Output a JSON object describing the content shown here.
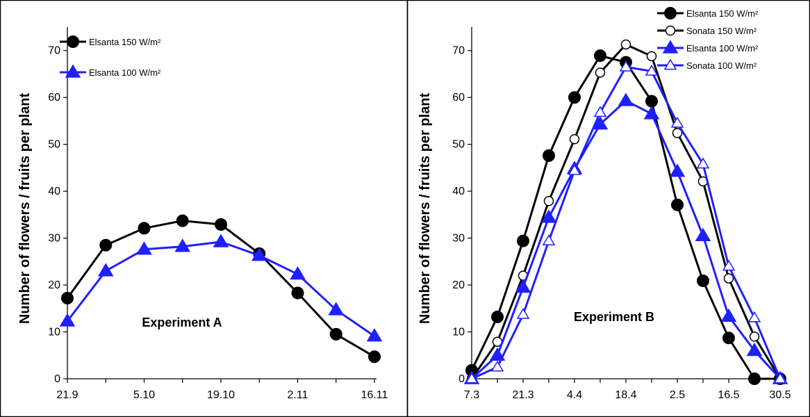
{
  "chart_data": [
    {
      "type": "line",
      "title": "",
      "annotation": "Experiment A",
      "ylabel": "Number  of flowers  / fruits  per plant",
      "xlabel": "",
      "ylim": [
        0,
        75
      ],
      "yticks": [
        0,
        10,
        20,
        30,
        40,
        50,
        60,
        70
      ],
      "x_tick_labels": [
        "21.9",
        "5.10",
        "19.10",
        "2.11",
        "16.11"
      ],
      "x": [
        0,
        1,
        2,
        3,
        4,
        5,
        6,
        7,
        8
      ],
      "x_tick_positions": [
        0,
        2,
        4,
        6,
        8
      ],
      "legend_position": "top-left",
      "series": [
        {
          "name": "Elsanta 150 W/m²",
          "color": "#000000",
          "marker": "circle-filled",
          "values": [
            17.2,
            28.5,
            32.1,
            33.7,
            32.9,
            26.7,
            18.3,
            9.5,
            4.7
          ]
        },
        {
          "name": "Elsanta 100 W/m²",
          "color": "#1f1fff",
          "marker": "triangle-filled",
          "values": [
            12.3,
            23.0,
            27.6,
            28.2,
            29.2,
            26.3,
            22.3,
            14.7,
            9.1
          ]
        }
      ]
    },
    {
      "type": "line",
      "title": "",
      "annotation": "Experiment B",
      "ylabel": "Number  of flowers  / fruits  per plant",
      "xlabel": "",
      "ylim": [
        0,
        75
      ],
      "yticks": [
        0,
        10,
        20,
        30,
        40,
        50,
        60,
        70
      ],
      "x_tick_labels": [
        "7.3",
        "21.3",
        "4.4",
        "18.4",
        "2.5",
        "16.5",
        "30.5"
      ],
      "x": [
        0,
        1,
        2,
        3,
        4,
        5,
        6,
        7,
        8,
        9,
        10,
        11,
        12
      ],
      "x_tick_positions": [
        0,
        2,
        4,
        6,
        8,
        10,
        12
      ],
      "legend_position": "top-right",
      "series": [
        {
          "name": "Elsanta 150 W/m²",
          "color": "#000000",
          "marker": "circle-filled",
          "values": [
            1.8,
            13.2,
            29.4,
            47.6,
            60.0,
            68.9,
            67.5,
            59.2,
            37.1,
            20.9,
            8.7,
            0.0,
            0.0
          ]
        },
        {
          "name": "Sonata 150 W/m²",
          "color": "#000000",
          "marker": "circle-open",
          "values": [
            0.0,
            7.9,
            22.0,
            37.9,
            51.1,
            65.3,
            71.3,
            68.8,
            52.4,
            42.1,
            21.4,
            9.0,
            0.0
          ]
        },
        {
          "name": "Elsanta 100 W/m²",
          "color": "#1f1fff",
          "marker": "triangle-filled",
          "values": [
            0.0,
            5.0,
            19.5,
            34.4,
            44.8,
            54.3,
            59.3,
            56.5,
            44.2,
            30.5,
            13.3,
            6.0,
            0.0
          ]
        },
        {
          "name": "Sonata 100 W/m²",
          "color": "#1f1fff",
          "marker": "triangle-open",
          "values": [
            0.0,
            2.5,
            13.7,
            29.4,
            44.4,
            56.8,
            66.5,
            65.6,
            54.5,
            45.8,
            24.0,
            13.0,
            0.0
          ]
        }
      ]
    }
  ]
}
